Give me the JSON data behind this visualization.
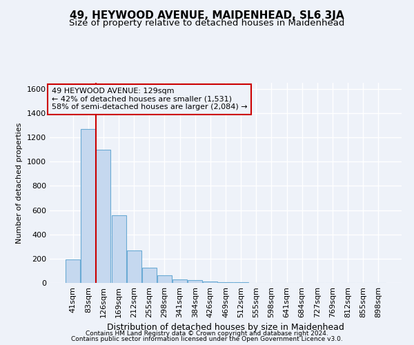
{
  "title": "49, HEYWOOD AVENUE, MAIDENHEAD, SL6 3JA",
  "subtitle": "Size of property relative to detached houses in Maidenhead",
  "xlabel": "Distribution of detached houses by size in Maidenhead",
  "ylabel": "Number of detached properties",
  "footer1": "Contains HM Land Registry data © Crown copyright and database right 2024.",
  "footer2": "Contains public sector information licensed under the Open Government Licence v3.0.",
  "categories": [
    "41sqm",
    "83sqm",
    "126sqm",
    "169sqm",
    "212sqm",
    "255sqm",
    "298sqm",
    "341sqm",
    "384sqm",
    "426sqm",
    "469sqm",
    "512sqm",
    "555sqm",
    "598sqm",
    "641sqm",
    "684sqm",
    "727sqm",
    "769sqm",
    "812sqm",
    "855sqm",
    "898sqm"
  ],
  "values": [
    195,
    1270,
    1100,
    560,
    265,
    125,
    60,
    30,
    20,
    10,
    5,
    3,
    2,
    1,
    1,
    1,
    0,
    0,
    0,
    0,
    0
  ],
  "bar_color": "#c5d8ef",
  "bar_edge_color": "#6aaad4",
  "annotation_text": "49 HEYWOOD AVENUE: 129sqm\n← 42% of detached houses are smaller (1,531)\n58% of semi-detached houses are larger (2,084) →",
  "vline_x": 1.5,
  "vline_color": "#cc0000",
  "box_edge_color": "#cc0000",
  "ylim": [
    0,
    1650
  ],
  "yticks": [
    0,
    200,
    400,
    600,
    800,
    1000,
    1200,
    1400,
    1600
  ],
  "bg_color": "#eef2f9",
  "grid_color": "#ffffff",
  "title_fontsize": 11,
  "subtitle_fontsize": 9.5,
  "annot_fontsize": 8,
  "tick_fontsize": 8,
  "xlabel_fontsize": 9,
  "ylabel_fontsize": 8,
  "footer_fontsize": 6.5
}
